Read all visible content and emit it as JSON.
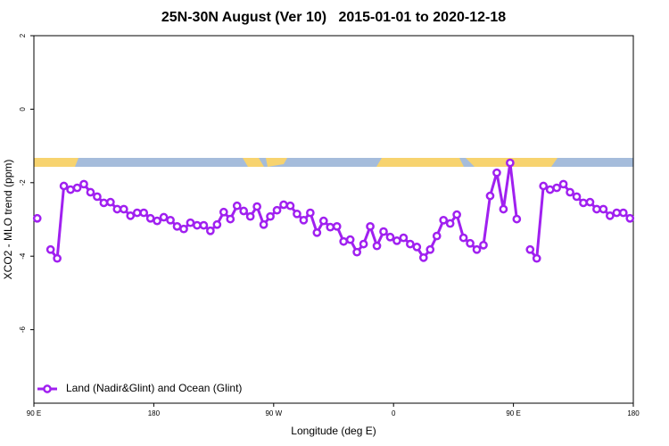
{
  "chart_data": {
    "type": "line",
    "title": "25N-30N August (Ver 10)   2015-01-01 to 2020-12-18",
    "x_label": "Longitude (deg E)",
    "y_label": "XCO2 - MLO trend (ppm)",
    "xlim": [
      90,
      540
    ],
    "xticks": [
      {
        "value": 90,
        "label": "90 E"
      },
      {
        "value": 180,
        "label": "180"
      },
      {
        "value": 270,
        "label": "90 W"
      },
      {
        "value": 360,
        "label": "0"
      },
      {
        "value": 450,
        "label": "90 E"
      },
      {
        "value": 540,
        "label": "180"
      }
    ],
    "ylim": [
      -8,
      2
    ],
    "yticks": [
      -6,
      -4,
      -2,
      0,
      2
    ],
    "legend": "bottomleft",
    "x": [
      92.5,
      97.5,
      102.5,
      107.5,
      112.5,
      117.5,
      122.5,
      127.5,
      132.5,
      137.5,
      142.5,
      147.5,
      152.5,
      157.5,
      162.5,
      167.5,
      172.5,
      177.5,
      182.5,
      187.5,
      192.5,
      197.5,
      202.5,
      207.5,
      212.5,
      217.5,
      222.5,
      227.5,
      232.5,
      237.5,
      242.5,
      247.5,
      252.5,
      257.5,
      262.5,
      267.5,
      272.5,
      277.5,
      282.5,
      287.5,
      292.5,
      297.5,
      302.5,
      307.5,
      312.5,
      317.5,
      322.5,
      327.5,
      332.5,
      337.5,
      342.5,
      347.5,
      352.5,
      357.5,
      362.5,
      367.5,
      372.5,
      377.5,
      382.5,
      387.5,
      392.5,
      397.5,
      402.5,
      407.5,
      412.5,
      417.5,
      422.5,
      427.5,
      432.5,
      437.5,
      442.5,
      447.5,
      452.5,
      457.5,
      462.5,
      467.5,
      472.5,
      477.5,
      482.5,
      487.5,
      492.5,
      497.5,
      502.5,
      507.5,
      512.5,
      517.5,
      522.5,
      527.5,
      532.5,
      537.5
    ],
    "series": [
      {
        "name": "Land (Nadir&Glint) and Ocean (Glint)",
        "color": "#a020f0",
        "values": [
          -2.97,
          null,
          -3.82,
          -4.06,
          -2.09,
          -2.19,
          -2.14,
          -2.04,
          -2.26,
          -2.38,
          -2.55,
          -2.53,
          -2.72,
          -2.72,
          -2.9,
          -2.82,
          -2.82,
          -2.97,
          -3.04,
          -2.94,
          -3.02,
          -3.19,
          -3.26,
          -3.09,
          -3.16,
          -3.16,
          -3.31,
          -3.14,
          -2.8,
          -2.99,
          -2.63,
          -2.77,
          -2.92,
          -2.65,
          -3.14,
          -2.92,
          -2.75,
          -2.6,
          -2.63,
          -2.85,
          -3.02,
          -2.82,
          -3.36,
          -3.04,
          -3.21,
          -3.19,
          -3.6,
          -3.55,
          -3.89,
          -3.67,
          -3.19,
          -3.72,
          -3.33,
          -3.48,
          -3.58,
          -3.5,
          -3.67,
          -3.75,
          -4.04,
          -3.82,
          -3.45,
          -3.02,
          -3.11,
          -2.87,
          -3.5,
          -3.65,
          -3.82,
          -3.7,
          -2.36,
          -1.73,
          -2.72,
          -1.46,
          -2.99,
          null,
          -3.82,
          -4.06,
          -2.09,
          -2.19,
          -2.14,
          -2.04,
          -2.26,
          -2.38,
          -2.55,
          -2.53,
          -2.72,
          -2.72,
          -2.9,
          -2.82,
          -2.82,
          -2.97
        ]
      }
    ]
  }
}
